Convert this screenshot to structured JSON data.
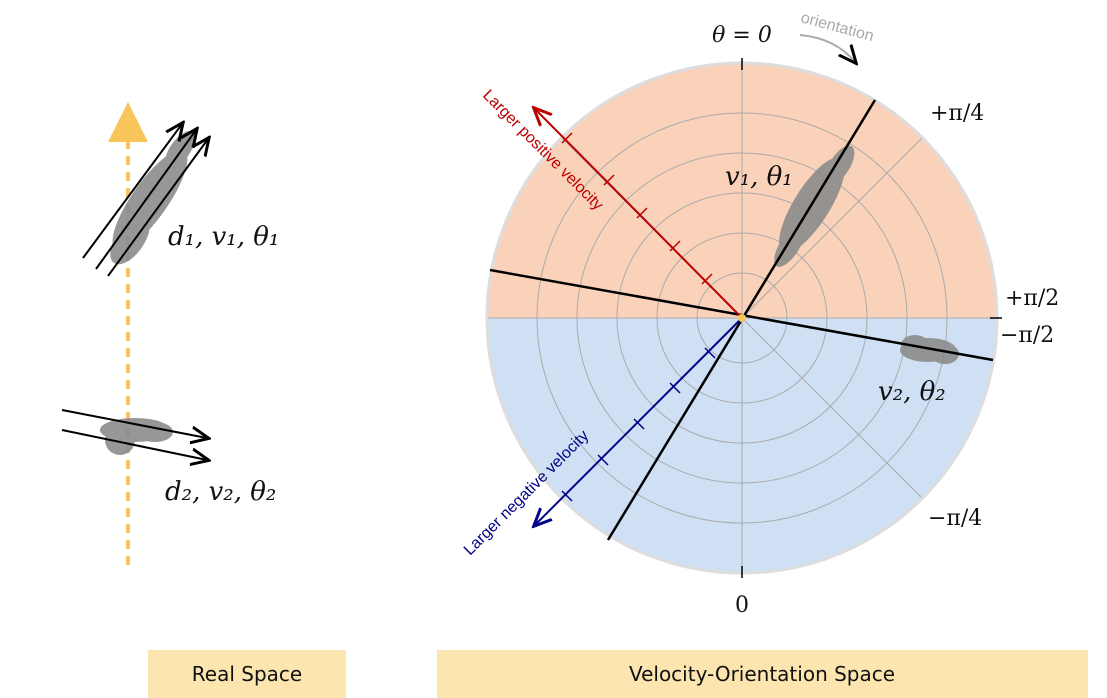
{
  "real_space": {
    "label_1": "d₁, v₁, θ₁",
    "label_2": "d₂, v₂, θ₂",
    "caption": "Real Space"
  },
  "polar": {
    "top": "θ = 0",
    "orientation": "orientation",
    "plus_quarter": "+π/4",
    "plus_half": "+π/2",
    "minus_half": "−π/2",
    "minus_quarter": "−π/4",
    "bottom": "0",
    "positive": "Larger positive velocity",
    "negative": "Larger negative velocity",
    "blob_1": "v₁, θ₁",
    "blob_2": "v₂, θ₂",
    "caption": "Velocity-Orientation Space"
  }
}
